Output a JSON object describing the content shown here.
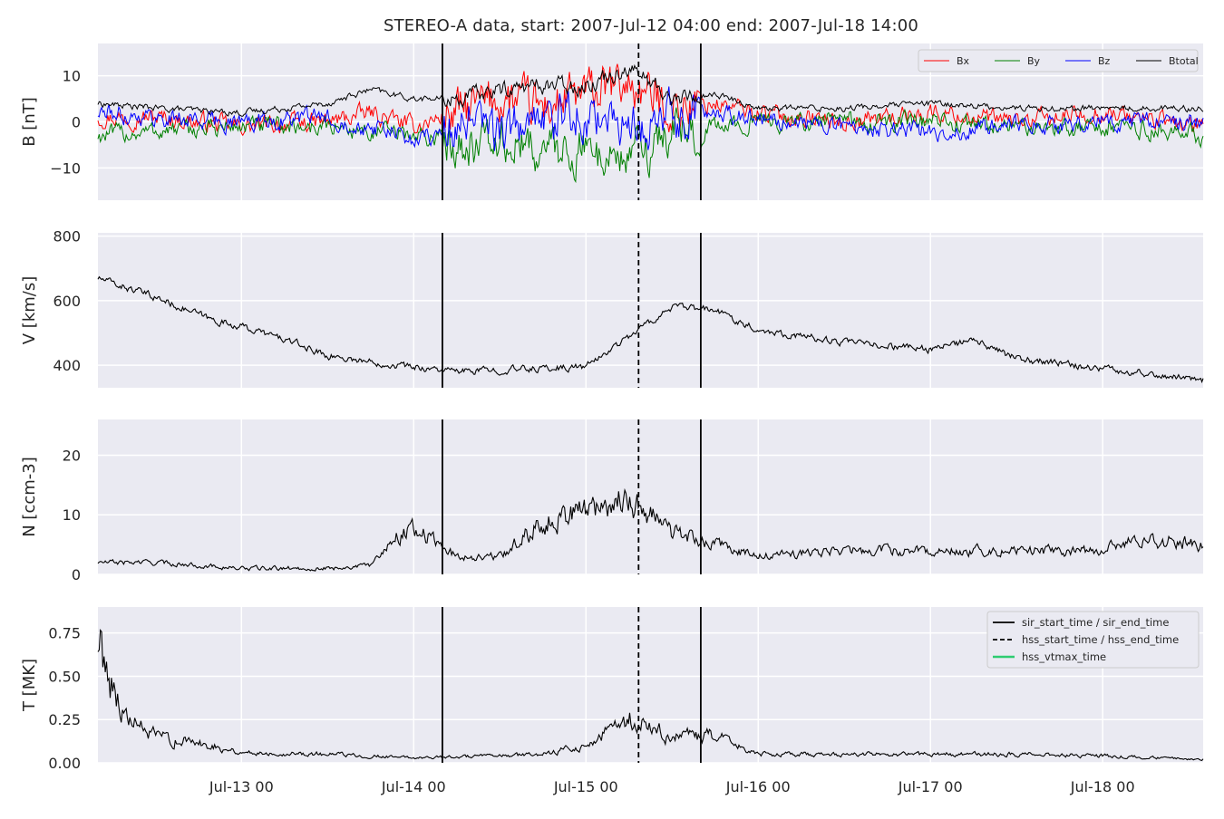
{
  "figure": {
    "title": "STEREO-A data, start: 2007-Jul-12 04:00  end: 2007-Jul-18 14:00"
  },
  "chart_data": [
    {
      "type": "line",
      "panel": "magnetic-field",
      "ylabel": "B [nT]",
      "xlim": [
        "2007-07-12 04:00",
        "2007-07-18 14:00"
      ],
      "ylim": [
        -17,
        17
      ],
      "yticks": [
        -10,
        0,
        10
      ],
      "xticks": [
        "Jul-13 00",
        "Jul-14 00",
        "Jul-15 00",
        "Jul-16 00",
        "Jul-17 00",
        "Jul-18 00"
      ],
      "grid": true,
      "legend": "top-right",
      "series": [
        {
          "name": "Bx",
          "color": "#ff0000",
          "x": [
            "2007-07-12 04:00",
            "2007-07-12 12:00",
            "2007-07-13 00:00",
            "2007-07-13 12:00",
            "2007-07-13 18:00",
            "2007-07-14 00:00",
            "2007-07-14 06:00",
            "2007-07-14 12:00",
            "2007-07-14 18:00",
            "2007-07-15 00:00",
            "2007-07-15 06:00",
            "2007-07-15 12:00",
            "2007-07-15 18:00",
            "2007-07-16 00:00",
            "2007-07-16 12:00",
            "2007-07-17 00:00",
            "2007-07-17 12:00",
            "2007-07-18 00:00",
            "2007-07-18 14:00"
          ],
          "y": [
            1,
            1,
            -1,
            0,
            2,
            -1,
            2,
            5,
            3,
            6,
            8,
            3,
            4,
            2,
            0,
            2,
            0,
            2,
            -1
          ]
        },
        {
          "name": "By",
          "color": "#008000",
          "x": [
            "2007-07-12 04:00",
            "2007-07-12 12:00",
            "2007-07-13 00:00",
            "2007-07-13 12:00",
            "2007-07-13 18:00",
            "2007-07-14 00:00",
            "2007-07-14 06:00",
            "2007-07-14 12:00",
            "2007-07-14 18:00",
            "2007-07-15 00:00",
            "2007-07-15 06:00",
            "2007-07-15 12:00",
            "2007-07-15 18:00",
            "2007-07-16 00:00",
            "2007-07-16 12:00",
            "2007-07-17 00:00",
            "2007-07-17 12:00",
            "2007-07-18 00:00",
            "2007-07-18 14:00"
          ],
          "y": [
            -3,
            -2,
            -1,
            -1,
            -2,
            -3,
            -4,
            -5,
            -6,
            -6,
            -8,
            -2,
            -1,
            0,
            0,
            0,
            -1,
            -1,
            -3
          ]
        },
        {
          "name": "Bz",
          "color": "#0000ff",
          "x": [
            "2007-07-12 04:00",
            "2007-07-12 12:00",
            "2007-07-13 00:00",
            "2007-07-13 12:00",
            "2007-07-13 18:00",
            "2007-07-14 00:00",
            "2007-07-14 06:00",
            "2007-07-14 12:00",
            "2007-07-14 18:00",
            "2007-07-15 00:00",
            "2007-07-15 06:00",
            "2007-07-15 12:00",
            "2007-07-15 18:00",
            "2007-07-16 00:00",
            "2007-07-16 12:00",
            "2007-07-17 00:00",
            "2007-07-17 12:00",
            "2007-07-18 00:00",
            "2007-07-18 14:00"
          ],
          "y": [
            2,
            1,
            0,
            1,
            -1,
            -4,
            -1,
            -2,
            0,
            2,
            -2,
            1,
            2,
            1,
            -1,
            -2,
            -1,
            0,
            0
          ]
        },
        {
          "name": "Btotal",
          "color": "#000000",
          "x": [
            "2007-07-12 04:00",
            "2007-07-12 12:00",
            "2007-07-13 00:00",
            "2007-07-13 12:00",
            "2007-07-13 18:00",
            "2007-07-14 00:00",
            "2007-07-14 06:00",
            "2007-07-14 12:00",
            "2007-07-14 18:00",
            "2007-07-15 00:00",
            "2007-07-15 06:00",
            "2007-07-15 12:00",
            "2007-07-15 18:00",
            "2007-07-16 00:00",
            "2007-07-16 12:00",
            "2007-07-17 00:00",
            "2007-07-17 12:00",
            "2007-07-18 00:00",
            "2007-07-18 14:00"
          ],
          "y": [
            4,
            3,
            2,
            4,
            7,
            5,
            5,
            7,
            8,
            8,
            12,
            5,
            6,
            3,
            3,
            4,
            3,
            3,
            3
          ]
        }
      ]
    },
    {
      "type": "line",
      "panel": "velocity",
      "ylabel": "V [km/s]",
      "xlim": [
        "2007-07-12 04:00",
        "2007-07-18 14:00"
      ],
      "ylim": [
        330,
        810
      ],
      "yticks": [
        400,
        600,
        800
      ],
      "xticks": [
        "Jul-13 00",
        "Jul-14 00",
        "Jul-15 00",
        "Jul-16 00",
        "Jul-17 00",
        "Jul-18 00"
      ],
      "grid": true,
      "series": [
        {
          "color": "#000000",
          "x": [
            "2007-07-12 04:00",
            "2007-07-12 12:00",
            "2007-07-12 20:00",
            "2007-07-13 00:00",
            "2007-07-13 06:00",
            "2007-07-13 12:00",
            "2007-07-13 18:00",
            "2007-07-14 00:00",
            "2007-07-14 06:00",
            "2007-07-14 12:00",
            "2007-07-14 18:00",
            "2007-07-15 00:00",
            "2007-07-15 06:00",
            "2007-07-15 12:00",
            "2007-07-15 18:00",
            "2007-07-16 00:00",
            "2007-07-16 12:00",
            "2007-07-17 00:00",
            "2007-07-17 06:00",
            "2007-07-17 12:00",
            "2007-07-18 00:00",
            "2007-07-18 14:00"
          ],
          "y": [
            670,
            610,
            540,
            520,
            480,
            430,
            410,
            395,
            380,
            385,
            390,
            395,
            490,
            580,
            570,
            510,
            470,
            450,
            475,
            420,
            390,
            355
          ]
        }
      ]
    },
    {
      "type": "line",
      "panel": "density",
      "ylabel": "N [ccm-3]",
      "xlim": [
        "2007-07-12 04:00",
        "2007-07-18 14:00"
      ],
      "ylim": [
        0,
        26
      ],
      "yticks": [
        0,
        10,
        20
      ],
      "xticks": [
        "Jul-13 00",
        "Jul-14 00",
        "Jul-15 00",
        "Jul-16 00",
        "Jul-17 00",
        "Jul-18 00"
      ],
      "grid": true,
      "series": [
        {
          "color": "#000000",
          "x": [
            "2007-07-12 04:00",
            "2007-07-12 12:00",
            "2007-07-13 00:00",
            "2007-07-13 12:00",
            "2007-07-13 18:00",
            "2007-07-13 21:00",
            "2007-07-14 00:00",
            "2007-07-14 06:00",
            "2007-07-14 12:00",
            "2007-07-14 18:00",
            "2007-07-15 00:00",
            "2007-07-15 06:00",
            "2007-07-15 12:00",
            "2007-07-15 18:00",
            "2007-07-16 00:00",
            "2007-07-16 12:00",
            "2007-07-17 00:00",
            "2007-07-17 12:00",
            "2007-07-18 00:00",
            "2007-07-18 06:00",
            "2007-07-18 14:00"
          ],
          "y": [
            2,
            2,
            1,
            1,
            1.5,
            6,
            8,
            3,
            3,
            9,
            11,
            13,
            7,
            5,
            3,
            4,
            4,
            4,
            4,
            6,
            5
          ]
        }
      ]
    },
    {
      "type": "line",
      "panel": "temperature",
      "ylabel": "T [MK]",
      "xlim": [
        "2007-07-12 04:00",
        "2007-07-18 14:00"
      ],
      "ylim": [
        0,
        0.9
      ],
      "yticks": [
        0.0,
        0.25,
        0.5,
        0.75
      ],
      "yticklabels": [
        "0.00",
        "0.25",
        "0.50",
        "0.75"
      ],
      "xticks": [
        "Jul-13 00",
        "Jul-14 00",
        "Jul-15 00",
        "Jul-16 00",
        "Jul-17 00",
        "Jul-18 00"
      ],
      "grid": true,
      "legend": "top-right",
      "series": [
        {
          "color": "#000000",
          "x": [
            "2007-07-12 04:00",
            "2007-07-12 08:00",
            "2007-07-12 12:00",
            "2007-07-12 20:00",
            "2007-07-13 00:00",
            "2007-07-13 12:00",
            "2007-07-14 00:00",
            "2007-07-14 12:00",
            "2007-07-14 18:00",
            "2007-07-15 00:00",
            "2007-07-15 06:00",
            "2007-07-15 12:00",
            "2007-07-15 18:00",
            "2007-07-16 00:00",
            "2007-07-16 12:00",
            "2007-07-17 00:00",
            "2007-07-17 12:00",
            "2007-07-18 00:00",
            "2007-07-18 14:00"
          ],
          "y": [
            0.7,
            0.25,
            0.15,
            0.1,
            0.06,
            0.05,
            0.03,
            0.04,
            0.05,
            0.1,
            0.25,
            0.15,
            0.15,
            0.05,
            0.05,
            0.05,
            0.05,
            0.04,
            0.02
          ]
        }
      ],
      "legend_entries": [
        {
          "label": "sir_start_time / sir_end_time",
          "style": "solid",
          "color": "#000000"
        },
        {
          "label": "hss_start_time / hss_end_time",
          "style": "dashed",
          "color": "#000000"
        },
        {
          "label": "hss_vtmax_time",
          "style": "solid",
          "color": "#2ecc71"
        }
      ]
    }
  ],
  "events": {
    "sir_start_time": "2007-07-14 04:00",
    "hss_start_time": "2007-07-15 07:20",
    "sir_end_time": "2007-07-15 16:00"
  }
}
